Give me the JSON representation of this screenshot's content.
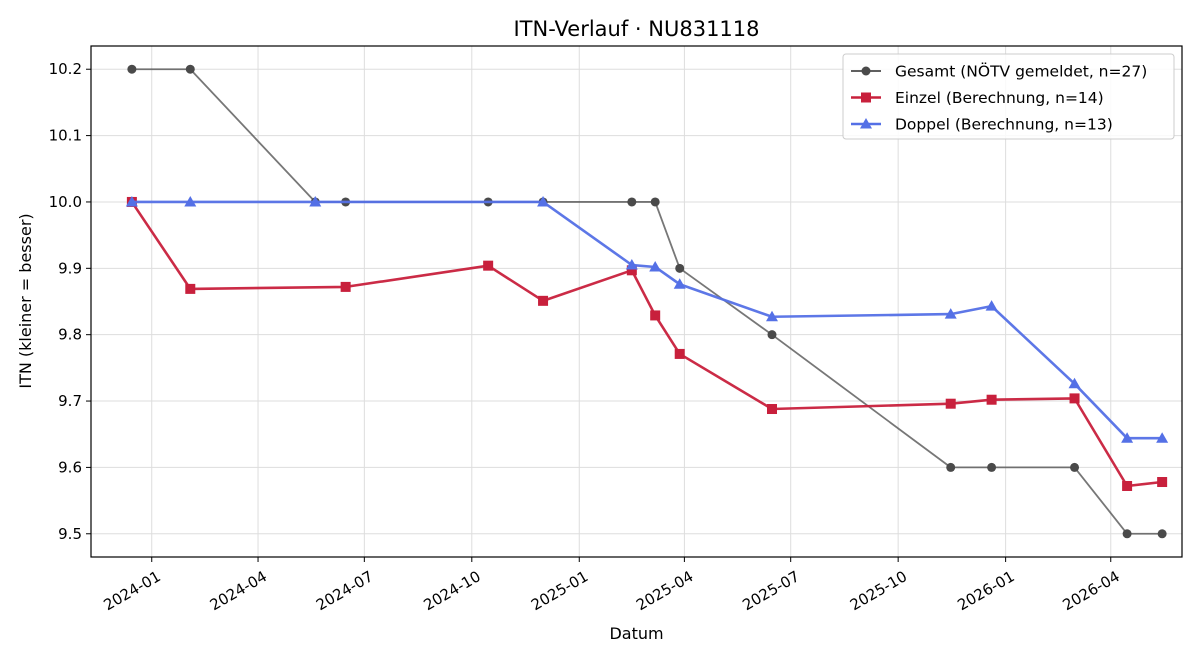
{
  "chart_data": {
    "type": "line",
    "title": "ITN-Verlauf · NU831118",
    "xlabel": "Datum",
    "ylabel": "ITN  (kleiner = besser)",
    "x_type": "date",
    "xlim": [
      "2023-11-10",
      "2026-06-01"
    ],
    "ylim": [
      9.465,
      10.235
    ],
    "x_ticks": [
      "2024-01",
      "2024-04",
      "2024-07",
      "2024-10",
      "2025-01",
      "2025-04",
      "2025-07",
      "2025-10",
      "2026-01",
      "2026-04"
    ],
    "y_ticks": [
      9.5,
      9.6,
      9.7,
      9.8,
      9.9,
      10.0,
      10.1,
      10.2
    ],
    "y_tick_labels": [
      "9.5",
      "9.6",
      "9.7",
      "9.8",
      "9.9",
      "10.0",
      "10.1",
      "10.2"
    ],
    "grid": true,
    "legend_position": "top-right",
    "series": [
      {
        "name": "Gesamt (NÖTV gemeldet, n=27)",
        "color": "#4a4a4a",
        "marker": "circle",
        "points": [
          [
            "2023-12-15",
            10.2
          ],
          [
            "2024-02-03",
            10.2
          ],
          [
            "2024-05-20",
            10.0
          ],
          [
            "2024-06-15",
            10.0
          ],
          [
            "2024-10-15",
            10.0
          ],
          [
            "2024-12-01",
            10.0
          ],
          [
            "2025-02-15",
            10.0
          ],
          [
            "2025-03-07",
            10.0
          ],
          [
            "2025-03-28",
            9.9
          ],
          [
            "2025-06-15",
            9.8
          ],
          [
            "2025-11-15",
            9.6
          ],
          [
            "2025-12-20",
            9.6
          ],
          [
            "2026-03-01",
            9.6
          ],
          [
            "2026-04-15",
            9.5
          ],
          [
            "2026-05-15",
            9.5
          ]
        ]
      },
      {
        "name": "Einzel (Berechnung, n=14)",
        "color": "#c8203c",
        "marker": "square",
        "points": [
          [
            "2023-12-15",
            10.0
          ],
          [
            "2024-02-03",
            9.869
          ],
          [
            "2024-06-15",
            9.872
          ],
          [
            "2024-10-15",
            9.904
          ],
          [
            "2024-12-01",
            9.851
          ],
          [
            "2025-02-15",
            9.897
          ],
          [
            "2025-03-07",
            9.829
          ],
          [
            "2025-03-28",
            9.771
          ],
          [
            "2025-06-15",
            9.688
          ],
          [
            "2025-11-15",
            9.696
          ],
          [
            "2025-12-20",
            9.702
          ],
          [
            "2026-03-01",
            9.704
          ],
          [
            "2026-04-15",
            9.572
          ],
          [
            "2026-05-15",
            9.578
          ]
        ]
      },
      {
        "name": "Doppel (Berechnung, n=13)",
        "color": "#5470e6",
        "marker": "triangle",
        "points": [
          [
            "2023-12-15",
            10.0
          ],
          [
            "2024-02-03",
            10.0
          ],
          [
            "2024-05-20",
            10.0
          ],
          [
            "2024-12-01",
            10.0
          ],
          [
            "2025-02-15",
            9.905
          ],
          [
            "2025-03-07",
            9.902
          ],
          [
            "2025-03-28",
            9.876
          ],
          [
            "2025-06-15",
            9.827
          ],
          [
            "2025-11-15",
            9.831
          ],
          [
            "2025-12-20",
            9.843
          ],
          [
            "2026-03-01",
            9.726
          ],
          [
            "2026-04-15",
            9.644
          ],
          [
            "2026-05-15",
            9.644
          ]
        ]
      }
    ]
  }
}
